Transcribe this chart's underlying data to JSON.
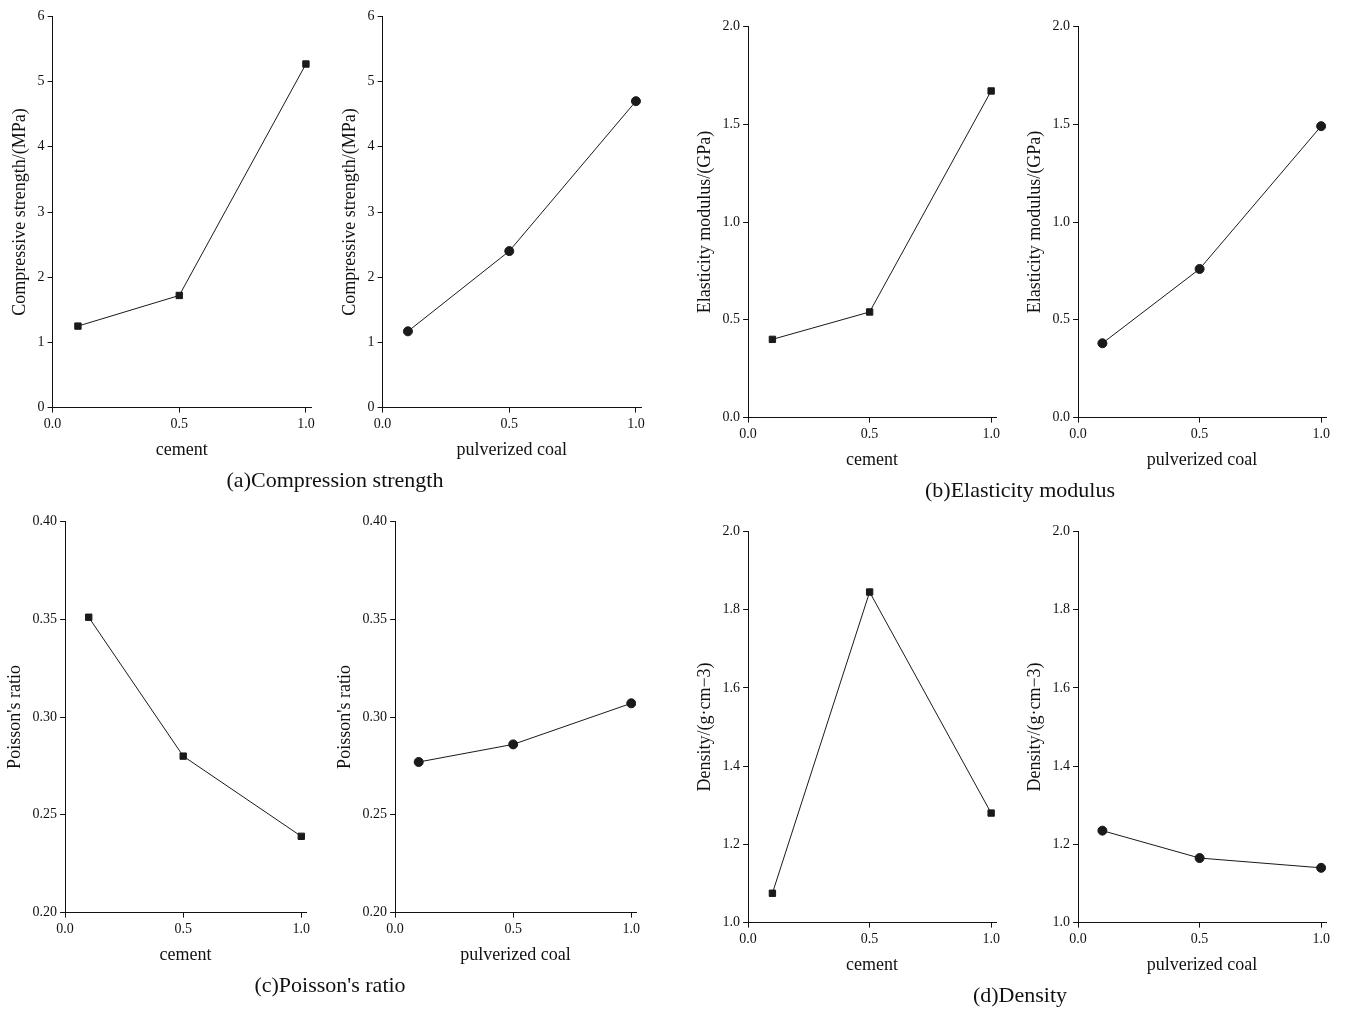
{
  "chart_data": [
    {
      "type": "line",
      "xlabel": "cement",
      "ylabel": "Compressive strength/(MPa)",
      "x": [
        0.1,
        0.5,
        1.0
      ],
      "series": [
        {
          "color": "#1a1a1a",
          "values": [
            1.25,
            1.72,
            5.27
          ]
        }
      ],
      "marker": "square",
      "xlim": [
        0,
        1.02
      ],
      "xticks": [
        {
          "value": 0,
          "label": "0.0"
        },
        {
          "value": 0.5,
          "label": "0.5"
        },
        {
          "value": 1,
          "label": "1.0"
        }
      ],
      "ylim": [
        0,
        6
      ],
      "yticks": [
        0,
        1,
        2,
        3,
        4,
        5,
        6
      ],
      "grid": false,
      "legend": false,
      "annotations": [
        "(a)Compression strength"
      ]
    },
    {
      "type": "line",
      "xlabel": "pulverized coal",
      "ylabel": "Compressive strength/(MPa)",
      "x": [
        0.1,
        0.5,
        1.0
      ],
      "series": [
        {
          "color": "#1a1a1a",
          "values": [
            1.17,
            2.4,
            4.7
          ]
        }
      ],
      "marker": "circle",
      "xlim": [
        0,
        1.02
      ],
      "xticks": [
        {
          "value": 0,
          "label": "0.0"
        },
        {
          "value": 0.5,
          "label": "0.5"
        },
        {
          "value": 1,
          "label": "1.0"
        }
      ],
      "ylim": [
        0,
        6
      ],
      "yticks": [
        0,
        1,
        2,
        3,
        4,
        5,
        6
      ],
      "grid": false,
      "legend": false
    },
    {
      "type": "line",
      "xlabel": "cement",
      "ylabel": "Elasticity modulus/(GPa)",
      "x": [
        0.1,
        0.5,
        1.0
      ],
      "series": [
        {
          "color": "#1a1a1a",
          "values": [
            0.4,
            0.54,
            1.67
          ]
        }
      ],
      "marker": "square",
      "xlim": [
        0,
        1.02
      ],
      "xticks": [
        {
          "value": 0,
          "label": "0.0"
        },
        {
          "value": 0.5,
          "label": "0.5"
        },
        {
          "value": 1,
          "label": "1.0"
        }
      ],
      "ylim": [
        0,
        2
      ],
      "yticks": [
        {
          "value": 0,
          "label": "0.0"
        },
        {
          "value": 0.5,
          "label": "0.5"
        },
        {
          "value": 1,
          "label": "1.0"
        },
        {
          "value": 1.5,
          "label": "1.5"
        },
        {
          "value": 2,
          "label": "2.0"
        }
      ],
      "grid": false,
      "legend": false,
      "annotations": [
        "(b)Elasticity modulus"
      ]
    },
    {
      "type": "line",
      "xlabel": "pulverized coal",
      "ylabel": "Elasticity modulus/(GPa)",
      "x": [
        0.1,
        0.5,
        1.0
      ],
      "series": [
        {
          "color": "#1a1a1a",
          "values": [
            0.38,
            0.76,
            1.49
          ]
        }
      ],
      "marker": "circle",
      "xlim": [
        0,
        1.02
      ],
      "xticks": [
        {
          "value": 0,
          "label": "0.0"
        },
        {
          "value": 0.5,
          "label": "0.5"
        },
        {
          "value": 1,
          "label": "1.0"
        }
      ],
      "ylim": [
        0,
        2
      ],
      "yticks": [
        {
          "value": 0,
          "label": "0.0"
        },
        {
          "value": 0.5,
          "label": "0.5"
        },
        {
          "value": 1,
          "label": "1.0"
        },
        {
          "value": 1.5,
          "label": "1.5"
        },
        {
          "value": 2,
          "label": "2.0"
        }
      ],
      "grid": false,
      "legend": false
    },
    {
      "type": "line",
      "xlabel": "cement",
      "ylabel": "Poisson's ratio",
      "x": [
        0.1,
        0.5,
        1.0
      ],
      "series": [
        {
          "color": "#1a1a1a",
          "values": [
            0.351,
            0.28,
            0.239
          ]
        }
      ],
      "marker": "square",
      "xlim": [
        0,
        1.02
      ],
      "xticks": [
        {
          "value": 0,
          "label": "0.0"
        },
        {
          "value": 0.5,
          "label": "0.5"
        },
        {
          "value": 1,
          "label": "1.0"
        }
      ],
      "ylim": [
        0.2,
        0.4
      ],
      "yticks": [
        {
          "value": 0.2,
          "label": "0.20"
        },
        {
          "value": 0.25,
          "label": "0.25"
        },
        {
          "value": 0.3,
          "label": "0.30"
        },
        {
          "value": 0.35,
          "label": "0.35"
        },
        {
          "value": 0.4,
          "label": "0.40"
        }
      ],
      "grid": false,
      "legend": false,
      "annotations": [
        "(c)Poisson's ratio"
      ]
    },
    {
      "type": "line",
      "xlabel": "pulverized coal",
      "ylabel": "Poisson's ratio",
      "x": [
        0.1,
        0.5,
        1.0
      ],
      "series": [
        {
          "color": "#1a1a1a",
          "values": [
            0.277,
            0.286,
            0.307
          ]
        }
      ],
      "marker": "circle",
      "xlim": [
        0,
        1.02
      ],
      "xticks": [
        {
          "value": 0,
          "label": "0.0"
        },
        {
          "value": 0.5,
          "label": "0.5"
        },
        {
          "value": 1,
          "label": "1.0"
        }
      ],
      "ylim": [
        0.2,
        0.4
      ],
      "yticks": [
        {
          "value": 0.2,
          "label": "0.20"
        },
        {
          "value": 0.25,
          "label": "0.25"
        },
        {
          "value": 0.3,
          "label": "0.30"
        },
        {
          "value": 0.35,
          "label": "0.35"
        },
        {
          "value": 0.4,
          "label": "0.40"
        }
      ],
      "grid": false,
      "legend": false
    },
    {
      "type": "line",
      "xlabel": "cement",
      "ylabel": "Density/(g·cm−3)",
      "x": [
        0.1,
        0.5,
        1.0
      ],
      "series": [
        {
          "color": "#1a1a1a",
          "values": [
            1.075,
            1.845,
            1.28
          ]
        }
      ],
      "marker": "square",
      "xlim": [
        0,
        1.02
      ],
      "xticks": [
        {
          "value": 0,
          "label": "0.0"
        },
        {
          "value": 0.5,
          "label": "0.5"
        },
        {
          "value": 1,
          "label": "1.0"
        }
      ],
      "ylim": [
        1,
        2
      ],
      "yticks": [
        {
          "value": 1,
          "label": "1.0"
        },
        1.2,
        1.4,
        1.6,
        1.8,
        {
          "value": 2,
          "label": "2.0"
        }
      ],
      "grid": false,
      "legend": false,
      "annotations": [
        "(d)Density"
      ]
    },
    {
      "type": "line",
      "xlabel": "pulverized coal",
      "ylabel": "Density/(g·cm−3)",
      "x": [
        0.1,
        0.5,
        1.0
      ],
      "series": [
        {
          "color": "#1a1a1a",
          "values": [
            1.235,
            1.165,
            1.14
          ]
        }
      ],
      "marker": "circle",
      "xlim": [
        0,
        1.02
      ],
      "xticks": [
        {
          "value": 0,
          "label": "0.0"
        },
        {
          "value": 0.5,
          "label": "0.5"
        },
        {
          "value": 1,
          "label": "1.0"
        }
      ],
      "ylim": [
        1,
        2
      ],
      "yticks": [
        {
          "value": 1,
          "label": "1.0"
        },
        1.2,
        1.4,
        1.6,
        1.8,
        {
          "value": 2,
          "label": "2.0"
        }
      ],
      "grid": false,
      "legend": false
    }
  ]
}
